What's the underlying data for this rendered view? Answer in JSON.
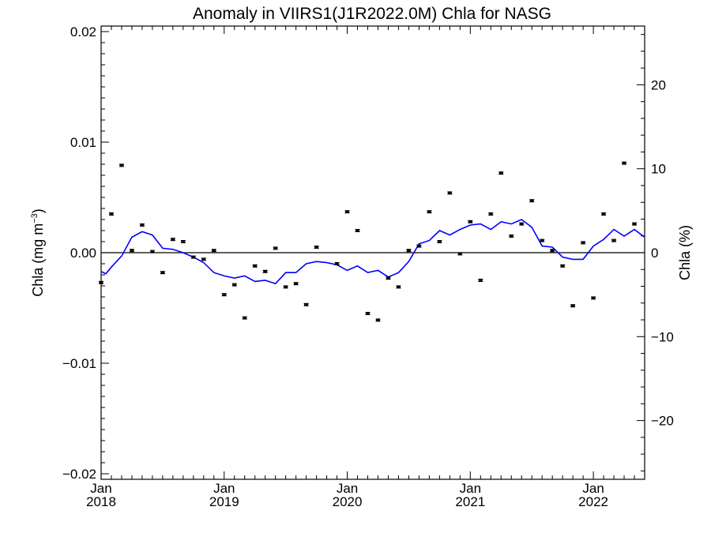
{
  "chart_data": {
    "type": "line",
    "title": "Anomaly in VIIRS1(J1R2022.0M) Chla for NASG",
    "ylabel_left": "Chla (mg m⁻³)",
    "ylabel_left_main": "Chla (mg m",
    "ylabel_left_sup": "−3",
    "ylabel_left_close": ")",
    "ylabel_right": "Chla (%)",
    "ylim_left": [
      -0.0205,
      0.0205
    ],
    "ylim_right": [
      -27,
      27
    ],
    "y_ticks_left": [
      {
        "value": 0.02,
        "label": "0.02"
      },
      {
        "value": 0.01,
        "label": "0.01"
      },
      {
        "value": 0.0,
        "label": "0.00"
      },
      {
        "value": -0.01,
        "label": "−0.01"
      },
      {
        "value": -0.02,
        "label": "−0.02"
      }
    ],
    "y_ticks_right": [
      {
        "value": 20,
        "label": "20"
      },
      {
        "value": 10,
        "label": "10"
      },
      {
        "value": 0,
        "label": "0"
      },
      {
        "value": -10,
        "label": "−10"
      },
      {
        "value": -20,
        "label": "−20"
      }
    ],
    "x_range": [
      "2018-01",
      "2022-06"
    ],
    "x_ticks": [
      {
        "date": "2018-01",
        "month": "Jan",
        "year": "2018"
      },
      {
        "date": "2019-01",
        "month": "Jan",
        "year": "2019"
      },
      {
        "date": "2020-01",
        "month": "Jan",
        "year": "2020"
      },
      {
        "date": "2021-01",
        "month": "Jan",
        "year": "2021"
      },
      {
        "date": "2022-01",
        "month": "Jan",
        "year": "2022"
      }
    ],
    "zero_line": true,
    "series": [
      {
        "kind": "points_with_error_bars",
        "color": "#000000",
        "points": [
          {
            "date": "2018-01",
            "y": -0.0027
          },
          {
            "date": "2018-02",
            "y": 0.0035
          },
          {
            "date": "2018-03",
            "y": 0.0079
          },
          {
            "date": "2018-04",
            "y": 0.0002
          },
          {
            "date": "2018-05",
            "y": 0.0025
          },
          {
            "date": "2018-06",
            "y": 0.0001
          },
          {
            "date": "2018-07",
            "y": -0.0018
          },
          {
            "date": "2018-08",
            "y": 0.0012
          },
          {
            "date": "2018-09",
            "y": 0.001
          },
          {
            "date": "2018-10",
            "y": -0.0004
          },
          {
            "date": "2018-11",
            "y": -0.0006
          },
          {
            "date": "2018-12",
            "y": 0.0002
          },
          {
            "date": "2019-01",
            "y": -0.0038
          },
          {
            "date": "2019-02",
            "y": -0.0029
          },
          {
            "date": "2019-03",
            "y": -0.0059
          },
          {
            "date": "2019-04",
            "y": -0.0012
          },
          {
            "date": "2019-05",
            "y": -0.0017
          },
          {
            "date": "2019-06",
            "y": 0.0004
          },
          {
            "date": "2019-07",
            "y": -0.0031
          },
          {
            "date": "2019-08",
            "y": -0.0028
          },
          {
            "date": "2019-09",
            "y": -0.0047
          },
          {
            "date": "2019-10",
            "y": 0.0005
          },
          {
            "date": "2019-12",
            "y": -0.001
          },
          {
            "date": "2020-01",
            "y": 0.0037
          },
          {
            "date": "2020-02",
            "y": 0.002
          },
          {
            "date": "2020-03",
            "y": -0.0055
          },
          {
            "date": "2020-04",
            "y": -0.0061
          },
          {
            "date": "2020-05",
            "y": -0.0023
          },
          {
            "date": "2020-06",
            "y": -0.0031
          },
          {
            "date": "2020-07",
            "y": 0.0002
          },
          {
            "date": "2020-08",
            "y": 0.0006
          },
          {
            "date": "2020-09",
            "y": 0.0037
          },
          {
            "date": "2020-10",
            "y": 0.001
          },
          {
            "date": "2020-11",
            "y": 0.0054
          },
          {
            "date": "2020-12",
            "y": -0.0001
          },
          {
            "date": "2021-01",
            "y": 0.0028
          },
          {
            "date": "2021-02",
            "y": -0.0025
          },
          {
            "date": "2021-03",
            "y": 0.0035
          },
          {
            "date": "2021-04",
            "y": 0.0072
          },
          {
            "date": "2021-05",
            "y": 0.0015
          },
          {
            "date": "2021-06",
            "y": 0.0026
          },
          {
            "date": "2021-07",
            "y": 0.0047
          },
          {
            "date": "2021-08",
            "y": 0.0011
          },
          {
            "date": "2021-09",
            "y": 0.0002
          },
          {
            "date": "2021-10",
            "y": -0.0012
          },
          {
            "date": "2021-11",
            "y": -0.0048
          },
          {
            "date": "2021-12",
            "y": 0.0009
          },
          {
            "date": "2022-01",
            "y": -0.0041
          },
          {
            "date": "2022-02",
            "y": 0.0035
          },
          {
            "date": "2022-03",
            "y": 0.0011
          },
          {
            "date": "2022-04",
            "y": 0.0081
          },
          {
            "date": "2022-05",
            "y": 0.0026
          }
        ]
      },
      {
        "kind": "line",
        "color": "#0000ff",
        "points": [
          {
            "date": "2018-01",
            "y": -0.0017
          },
          {
            "date": "2018-01-15",
            "y": -0.0019
          },
          {
            "date": "2018-02",
            "y": -0.0013
          },
          {
            "date": "2018-03",
            "y": -0.0003
          },
          {
            "date": "2018-04",
            "y": 0.0014
          },
          {
            "date": "2018-05",
            "y": 0.0019
          },
          {
            "date": "2018-06",
            "y": 0.0016
          },
          {
            "date": "2018-07",
            "y": 0.0004
          },
          {
            "date": "2018-08",
            "y": 0.0003
          },
          {
            "date": "2018-09",
            "y": 0.0
          },
          {
            "date": "2018-10",
            "y": -0.0004
          },
          {
            "date": "2018-11",
            "y": -0.0009
          },
          {
            "date": "2018-12",
            "y": -0.0018
          },
          {
            "date": "2019-01",
            "y": -0.0021
          },
          {
            "date": "2019-02",
            "y": -0.0023
          },
          {
            "date": "2019-03",
            "y": -0.0021
          },
          {
            "date": "2019-04",
            "y": -0.0026
          },
          {
            "date": "2019-05",
            "y": -0.0025
          },
          {
            "date": "2019-06",
            "y": -0.0028
          },
          {
            "date": "2019-07",
            "y": -0.0018
          },
          {
            "date": "2019-08",
            "y": -0.0018
          },
          {
            "date": "2019-09",
            "y": -0.001
          },
          {
            "date": "2019-10",
            "y": -0.0008
          },
          {
            "date": "2019-11",
            "y": -0.0009
          },
          {
            "date": "2019-12",
            "y": -0.0011
          },
          {
            "date": "2020-01",
            "y": -0.0016
          },
          {
            "date": "2020-02",
            "y": -0.0012
          },
          {
            "date": "2020-03",
            "y": -0.0018
          },
          {
            "date": "2020-04",
            "y": -0.0016
          },
          {
            "date": "2020-05",
            "y": -0.0022
          },
          {
            "date": "2020-06",
            "y": -0.0018
          },
          {
            "date": "2020-07",
            "y": -0.0008
          },
          {
            "date": "2020-08",
            "y": 0.0008
          },
          {
            "date": "2020-09",
            "y": 0.0011
          },
          {
            "date": "2020-10",
            "y": 0.002
          },
          {
            "date": "2020-11",
            "y": 0.0016
          },
          {
            "date": "2020-12",
            "y": 0.0021
          },
          {
            "date": "2021-01",
            "y": 0.0025
          },
          {
            "date": "2021-02",
            "y": 0.0026
          },
          {
            "date": "2021-03",
            "y": 0.0021
          },
          {
            "date": "2021-04",
            "y": 0.0028
          },
          {
            "date": "2021-05",
            "y": 0.0026
          },
          {
            "date": "2021-06",
            "y": 0.003
          },
          {
            "date": "2021-07",
            "y": 0.0023
          },
          {
            "date": "2021-08",
            "y": 0.0006
          },
          {
            "date": "2021-09",
            "y": 0.0005
          },
          {
            "date": "2021-10",
            "y": -0.0004
          },
          {
            "date": "2021-11",
            "y": -0.0006
          },
          {
            "date": "2021-12",
            "y": -0.0006
          },
          {
            "date": "2022-01",
            "y": 0.0006
          },
          {
            "date": "2022-02",
            "y": 0.0012
          },
          {
            "date": "2022-03",
            "y": 0.0021
          },
          {
            "date": "2022-04",
            "y": 0.0015
          },
          {
            "date": "2022-05",
            "y": 0.0021
          },
          {
            "date": "2022-06",
            "y": 0.0014
          }
        ]
      }
    ],
    "error_bar_halfwidth": 0.0001
  }
}
